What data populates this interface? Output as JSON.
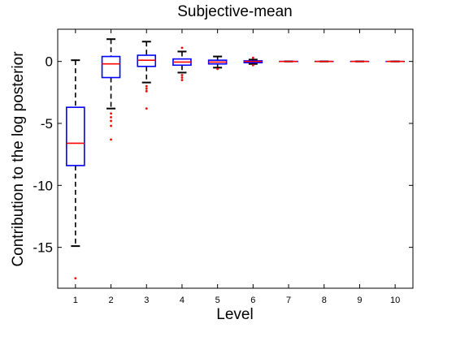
{
  "chart_data": {
    "type": "box",
    "title": "Subjective-mean",
    "xlabel": "Level",
    "ylabel": "Contribution to the log posterior",
    "ylim": [
      -18.3,
      2.6
    ],
    "xlim": [
      0.5,
      10.5
    ],
    "yticks": [
      0,
      -5,
      -10,
      -15
    ],
    "ytick_labels": [
      "0",
      "-5",
      "-10",
      "-15"
    ],
    "xtick_labels": [
      "1",
      "2",
      "3",
      "4",
      "5",
      "6",
      "7",
      "8",
      "9",
      "10"
    ],
    "grid": false,
    "colors": {
      "box": "#0000ff",
      "median": "#ff0000",
      "whisker": "#000000",
      "outlier": "#ff0000"
    },
    "boxes": [
      {
        "level": 1,
        "whisker_low": -14.9,
        "q1": -8.4,
        "median": -6.6,
        "q3": -3.7,
        "whisker_high": 0.1,
        "outliers": [
          -17.5
        ]
      },
      {
        "level": 2,
        "whisker_low": -3.8,
        "q1": -1.3,
        "median": -0.2,
        "q3": 0.4,
        "whisker_high": 1.8,
        "outliers": [
          -4.2,
          -4.5,
          -4.8,
          -5.2,
          -6.3
        ]
      },
      {
        "level": 3,
        "whisker_low": -1.7,
        "q1": -0.4,
        "median": 0.1,
        "q3": 0.5,
        "whisker_high": 1.6,
        "outliers": [
          -2.0,
          -2.2,
          -2.4,
          -3.8
        ]
      },
      {
        "level": 4,
        "whisker_low": -0.9,
        "q1": -0.3,
        "median": -0.05,
        "q3": 0.2,
        "whisker_high": 0.8,
        "outliers": [
          1.1,
          -1.1,
          -1.3,
          -1.5
        ]
      },
      {
        "level": 5,
        "whisker_low": -0.5,
        "q1": -0.2,
        "median": -0.05,
        "q3": 0.1,
        "whisker_high": 0.4,
        "outliers": [
          -0.6
        ]
      },
      {
        "level": 6,
        "whisker_low": -0.2,
        "q1": -0.1,
        "median": 0.0,
        "q3": 0.05,
        "whisker_high": 0.15,
        "outliers": [
          0.3,
          -0.3
        ]
      },
      {
        "level": 7,
        "whisker_low": 0,
        "q1": 0,
        "median": 0,
        "q3": 0,
        "whisker_high": 0,
        "outliers": []
      },
      {
        "level": 8,
        "whisker_low": 0,
        "q1": 0,
        "median": 0,
        "q3": 0,
        "whisker_high": 0,
        "outliers": []
      },
      {
        "level": 9,
        "whisker_low": 0,
        "q1": 0,
        "median": 0,
        "q3": 0,
        "whisker_high": 0,
        "outliers": []
      },
      {
        "level": 10,
        "whisker_low": 0,
        "q1": 0,
        "median": 0,
        "q3": 0,
        "whisker_high": 0,
        "outliers": []
      }
    ]
  }
}
